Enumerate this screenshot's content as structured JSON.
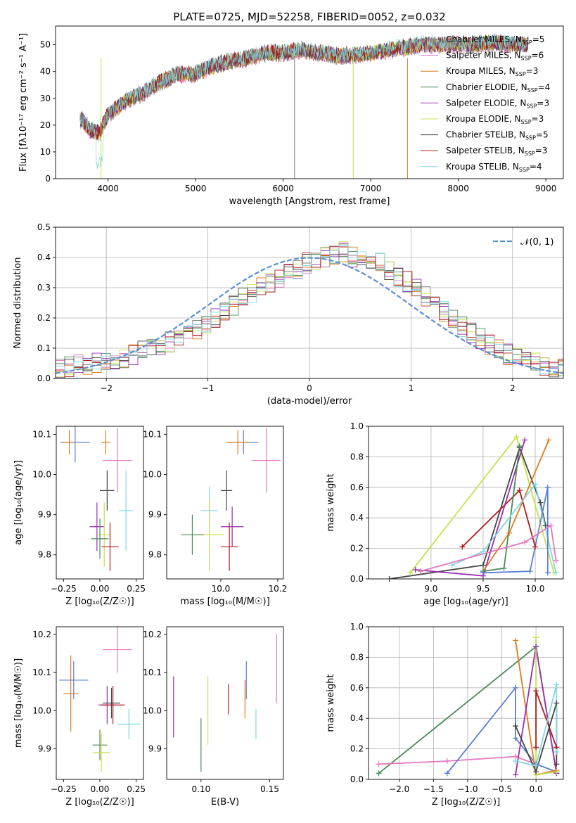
{
  "figure": {
    "title": "PLATE=0725, MJD=52258, FIBERID=0052, z=0.032"
  },
  "colors": {
    "Chabrier MILES": "#7f7f7f",
    "Salpeter MILES": "#e377c2",
    "Kroupa MILES": "#e07b20",
    "Chabrier ELODIE": "#4a8a5a",
    "Salpeter ELODIE": "#9b2cb0",
    "Kroupa ELODIE": "#c8e04a",
    "Chabrier STELIB": "#444444",
    "Salpeter STELIB": "#b01c1c",
    "Kroupa STELIB": "#7fd8e0",
    "scatter_blue": "#5b7fd6",
    "normal_curve": "#5b8fd6"
  },
  "chart_data": [
    {
      "id": "spectrum",
      "type": "line",
      "title": "PLATE=0725, MJD=52258, FIBERID=0052, z=0.032",
      "xlabel": "wavelength [Angstrom, rest frame]",
      "ylabel": "Flux [fλ10⁻¹⁷ erg cm⁻² s⁻¹ A⁻¹]",
      "xlim": [
        3400,
        9200
      ],
      "ylim": [
        0,
        57
      ],
      "xticks": [
        4000,
        5000,
        6000,
        7000,
        8000,
        9000
      ],
      "yticks": [
        0,
        10,
        20,
        30,
        40,
        50
      ],
      "grid": false,
      "legend_position": "top-right",
      "continuum_x": [
        3700,
        3800,
        3900,
        4000,
        4200,
        4400,
        4600,
        4800,
        5000,
        5200,
        5400,
        5600,
        5800,
        6000,
        6200,
        6400,
        6600,
        6800,
        7000,
        7200,
        7400,
        7600,
        7800,
        8000,
        8200,
        8400,
        8600,
        8800
      ],
      "continuum_y": [
        22,
        18,
        17,
        24,
        29,
        32,
        36,
        39,
        39,
        42,
        44,
        45,
        47,
        47,
        48,
        47,
        46,
        46,
        47,
        48,
        49,
        50,
        50,
        50,
        50,
        51,
        50,
        50
      ],
      "series": [
        {
          "name": "Chabrier MILES, N_SSP=5",
          "label": "Chabrier MILES, N",
          "sub": "SSP",
          "suffix": "=5"
        },
        {
          "name": "Salpeter MILES, N_SSP=6",
          "label": "Salpeter MILES, N",
          "sub": "SSP",
          "suffix": "=6"
        },
        {
          "name": "Kroupa MILES, N_SSP=3",
          "label": "Kroupa MILES, N",
          "sub": "SSP",
          "suffix": "=3"
        },
        {
          "name": "Chabrier ELODIE, N_SSP=4",
          "label": "Chabrier ELODIE, N",
          "sub": "SSP",
          "suffix": "=4"
        },
        {
          "name": "Salpeter ELODIE, N_SSP=3",
          "label": "Salpeter ELODIE, N",
          "sub": "SSP",
          "suffix": "=3"
        },
        {
          "name": "Kroupa ELODIE, N_SSP=3",
          "label": "Kroupa ELODIE, N",
          "sub": "SSP",
          "suffix": "=3"
        },
        {
          "name": "Chabrier STELIB, N_SSP=5",
          "label": "Chabrier STELIB, N",
          "sub": "SSP",
          "suffix": "=5"
        },
        {
          "name": "Salpeter STELIB, N_SSP=3",
          "label": "Salpeter STELIB, N",
          "sub": "SSP",
          "suffix": "=3"
        },
        {
          "name": "Kroupa STELIB, N_SSP=4",
          "label": "Kroupa STELIB, N",
          "sub": "SSP",
          "suffix": "=4"
        }
      ]
    },
    {
      "id": "residuals",
      "type": "area",
      "xlabel": "(data-model)/error",
      "ylabel": "Normed distribution",
      "xlim": [
        -2.5,
        2.5
      ],
      "ylim": [
        0,
        0.5
      ],
      "xticks": [
        -2,
        -1,
        0,
        1,
        2
      ],
      "xtick_labels": [
        "−2",
        "−1",
        "0",
        "1",
        "2"
      ],
      "yticks": [
        0,
        0.1,
        0.2,
        0.3,
        0.4,
        0.5
      ],
      "ytick_labels": [
        "0.0",
        "0.1",
        "0.2",
        "0.3",
        "0.4",
        "0.5"
      ],
      "grid": true,
      "legend_position": "top-right",
      "legend_label": "𝒩(0, 1)",
      "bin_width": 0.1,
      "bins_start": -2.5,
      "histogram_envelope": [
        0.03,
        0.04,
        0.05,
        0.04,
        0.05,
        0.06,
        0.06,
        0.07,
        0.08,
        0.09,
        0.1,
        0.11,
        0.12,
        0.13,
        0.15,
        0.16,
        0.18,
        0.2,
        0.22,
        0.24,
        0.27,
        0.28,
        0.3,
        0.32,
        0.33,
        0.35,
        0.36,
        0.38,
        0.38,
        0.4,
        0.41,
        0.42,
        0.4,
        0.39,
        0.38,
        0.38,
        0.36,
        0.33,
        0.32,
        0.3,
        0.27,
        0.25,
        0.22,
        0.2,
        0.17,
        0.15,
        0.13,
        0.11,
        0.1,
        0.08,
        0.07,
        0.06,
        0.05,
        0.04,
        0.04,
        0.03
      ]
    },
    {
      "id": "z-age",
      "type": "scatter",
      "xlabel": "Z [log₁₀(Z/Z☉)]",
      "ylabel": "age  [log₁₀(age/yr)]",
      "xlim": [
        -0.3,
        0.3
      ],
      "ylim": [
        9.74,
        10.12
      ],
      "xticks": [
        -0.25,
        0.0,
        0.25
      ],
      "xtick_labels": [
        "−0.25",
        "0.00",
        "0.25"
      ],
      "yticks": [
        9.8,
        9.9,
        10.0,
        10.1
      ],
      "ytick_labels": [
        "9.8",
        "9.9",
        "10.0",
        "10.1"
      ],
      "grid": false,
      "points": [
        {
          "c": "scatter_blue",
          "x": -0.17,
          "y": 10.08,
          "xe": 0.1,
          "ye": 0.05
        },
        {
          "c": "Kroupa MILES",
          "x": -0.21,
          "y": 10.08,
          "xe": 0.04,
          "ye": 0.03
        },
        {
          "c": "Salpeter MILES",
          "x": 0.12,
          "y": 10.035,
          "xe": 0.1,
          "ye": 0.08
        },
        {
          "c": "Kroupa MILES",
          "x": 0.04,
          "y": 10.08,
          "xe": 0.03,
          "ye": 0.03
        },
        {
          "c": "Chabrier STELIB",
          "x": 0.05,
          "y": 9.96,
          "xe": 0.05,
          "ye": 0.05
        },
        {
          "c": "Kroupa STELIB",
          "x": 0.18,
          "y": 9.91,
          "xe": 0.05,
          "ye": 0.1
        },
        {
          "c": "Salpeter ELODIE",
          "x": -0.02,
          "y": 9.87,
          "xe": 0.05,
          "ye": 0.06
        },
        {
          "c": "Kroupa ELODIE",
          "x": 0.03,
          "y": 9.85,
          "xe": 0.04,
          "ye": 0.08
        },
        {
          "c": "Chabrier ELODIE",
          "x": 0.0,
          "y": 9.84,
          "xe": 0.06,
          "ye": 0.05
        },
        {
          "c": "Salpeter STELIB",
          "x": 0.07,
          "y": 9.82,
          "xe": 0.06,
          "ye": 0.06
        }
      ]
    },
    {
      "id": "mass-age",
      "type": "scatter",
      "xlabel": "mass [log₁₀(M/M☉)]",
      "ylabel": "",
      "xlim": [
        9.81,
        10.22
      ],
      "ylim": [
        9.74,
        10.12
      ],
      "xticks": [
        10.0,
        10.2
      ],
      "xtick_labels": [
        "10.0",
        "10.2"
      ],
      "yticks": [
        9.8,
        9.9,
        10.0,
        10.1
      ],
      "ytick_labels": [
        "9.8",
        "9.9",
        "10.0",
        "10.1"
      ],
      "grid": false,
      "points": [
        {
          "c": "scatter_blue",
          "x": 10.08,
          "y": 10.08,
          "xe": 0.05,
          "ye": 0.03
        },
        {
          "c": "Kroupa MILES",
          "x": 10.06,
          "y": 10.08,
          "xe": 0.04,
          "ye": 0.03
        },
        {
          "c": "Salpeter MILES",
          "x": 10.16,
          "y": 10.035,
          "xe": 0.05,
          "ye": 0.08
        },
        {
          "c": "Chabrier STELIB",
          "x": 10.02,
          "y": 9.96,
          "xe": 0.02,
          "ye": 0.05
        },
        {
          "c": "Kroupa STELIB",
          "x": 9.96,
          "y": 9.91,
          "xe": 0.03,
          "ye": 0.06
        },
        {
          "c": "Salpeter ELODIE",
          "x": 10.04,
          "y": 9.87,
          "xe": 0.04,
          "ye": 0.05
        },
        {
          "c": "Kroupa ELODIE",
          "x": 9.96,
          "y": 9.85,
          "xe": 0.05,
          "ye": 0.09
        },
        {
          "c": "Chabrier ELODIE",
          "x": 9.9,
          "y": 9.85,
          "xe": 0.04,
          "ye": 0.05
        },
        {
          "c": "Salpeter STELIB",
          "x": 10.03,
          "y": 9.82,
          "xe": 0.03,
          "ye": 0.06
        }
      ]
    },
    {
      "id": "age-weight",
      "type": "line",
      "xlabel": "age  [log₁₀(age/yr)]",
      "ylabel": "mass weight",
      "xlim": [
        8.4,
        10.27
      ],
      "ylim": [
        0,
        1
      ],
      "xticks": [
        9.0,
        9.5,
        10.0
      ],
      "xtick_labels": [
        "9.0",
        "9.5",
        "10.0"
      ],
      "yticks": [
        0,
        0.2,
        0.4,
        0.6,
        0.8,
        1.0
      ],
      "ytick_labels": [
        "0.0",
        "0.2",
        "0.4",
        "0.6",
        "0.8",
        "1.0"
      ],
      "grid": true,
      "series": [
        {
          "c": "Kroupa ELODIE",
          "x": [
            8.8,
            9.82,
            10.18
          ],
          "y": [
            0.04,
            0.93,
            0.04
          ]
        },
        {
          "c": "Chabrier STELIB",
          "x": [
            8.6,
            9.5,
            9.85,
            10.05,
            10.1
          ],
          "y": [
            0.0,
            0.09,
            0.86,
            0.5,
            0.35
          ]
        },
        {
          "c": "Salpeter STELIB",
          "x": [
            9.3,
            9.85,
            10.0
          ],
          "y": [
            0.21,
            0.58,
            0.21
          ]
        },
        {
          "c": "Salpeter ELODIE",
          "x": [
            8.85,
            9.5,
            9.9
          ],
          "y": [
            0.06,
            0.02,
            0.91
          ]
        },
        {
          "c": "Kroupa MILES",
          "x": [
            9.5,
            9.75,
            10.13
          ],
          "y": [
            0.05,
            0.3,
            0.91
          ]
        },
        {
          "c": "Chabrier ELODIE",
          "x": [
            9.5,
            9.7,
            9.85
          ],
          "y": [
            0.05,
            0.07,
            0.87
          ]
        },
        {
          "c": "Kroupa STELIB",
          "x": [
            9.2,
            9.5,
            10.0,
            10.2
          ],
          "y": [
            0.09,
            0.18,
            0.62,
            0.04
          ]
        },
        {
          "c": "scatter_blue",
          "x": [
            9.5,
            9.95,
            10.12,
            10.12
          ],
          "y": [
            0.04,
            0.05,
            0.6,
            0.04
          ]
        },
        {
          "c": "Salpeter MILES",
          "x": [
            8.9,
            9.9,
            10.15,
            10.2
          ],
          "y": [
            0.05,
            0.24,
            0.35,
            0.12
          ]
        }
      ]
    },
    {
      "id": "z-mass",
      "type": "scatter",
      "xlabel": "Z [log₁₀(Z/Z☉)]",
      "ylabel": "mass [log₁₀(M/M☉)]",
      "xlim": [
        -0.3,
        0.3
      ],
      "ylim": [
        9.82,
        10.22
      ],
      "xticks": [
        -0.25,
        0.0,
        0.25
      ],
      "xtick_labels": [
        "−0.25",
        "0.00",
        "0.25"
      ],
      "yticks": [
        9.9,
        10.0,
        10.1,
        10.2
      ],
      "ytick_labels": [
        "9.9",
        "10.0",
        "10.1",
        "10.2"
      ],
      "grid": false,
      "points": [
        {
          "c": "Salpeter MILES",
          "x": 0.12,
          "y": 10.16,
          "xe": 0.1,
          "ye": 0.06
        },
        {
          "c": "scatter_blue",
          "x": -0.18,
          "y": 10.08,
          "xe": 0.1,
          "ye": 0.05
        },
        {
          "c": "Kroupa MILES",
          "x": -0.2,
          "y": 10.045,
          "xe": 0.05,
          "ye": 0.1
        },
        {
          "c": "Chabrier STELIB",
          "x": 0.08,
          "y": 10.02,
          "xe": 0.06,
          "ye": 0.04
        },
        {
          "c": "Salpeter ELODIE",
          "x": 0.05,
          "y": 10.015,
          "xe": 0.06,
          "ye": 0.05
        },
        {
          "c": "Salpeter STELIB",
          "x": 0.09,
          "y": 10.015,
          "xe": 0.08,
          "ye": 0.05
        },
        {
          "c": "Kroupa STELIB",
          "x": 0.2,
          "y": 9.965,
          "xe": 0.08,
          "ye": 0.04
        },
        {
          "c": "Chabrier ELODIE",
          "x": 0.0,
          "y": 9.91,
          "xe": 0.05,
          "ye": 0.04
        },
        {
          "c": "Kroupa ELODIE",
          "x": 0.01,
          "y": 9.89,
          "xe": 0.06,
          "ye": 0.05
        }
      ]
    },
    {
      "id": "ebv-mass",
      "type": "scatter",
      "xlabel": "E(B-V)",
      "ylabel": "",
      "xlim": [
        0.075,
        0.16
      ],
      "ylim": [
        9.82,
        10.22
      ],
      "xticks": [
        0.1,
        0.15
      ],
      "xtick_labels": [
        "0.10",
        "0.15"
      ],
      "yticks": [
        9.9,
        10.0,
        10.1,
        10.2
      ],
      "ytick_labels": [
        "9.9",
        "10.0",
        "10.1",
        "10.2"
      ],
      "grid": false,
      "points": [
        {
          "c": "Salpeter MILES",
          "x": 0.155,
          "y": 10.11,
          "xe": 0,
          "ye": 0.09
        },
        {
          "c": "scatter_blue",
          "x": 0.133,
          "y": 10.08,
          "xe": 0,
          "ye": 0.05
        },
        {
          "c": "Kroupa MILES",
          "x": 0.132,
          "y": 10.03,
          "xe": 0,
          "ye": 0.05
        },
        {
          "c": "Kroupa ELODIE",
          "x": 0.105,
          "y": 10.0,
          "xe": 0,
          "ye": 0.09
        },
        {
          "c": "Salpeter ELODIE",
          "x": 0.08,
          "y": 10.01,
          "xe": 0,
          "ye": 0.08
        },
        {
          "c": "Salpeter STELIB",
          "x": 0.12,
          "y": 10.03,
          "xe": 0,
          "ye": 0.04
        },
        {
          "c": "Kroupa STELIB",
          "x": 0.14,
          "y": 9.965,
          "xe": 0,
          "ye": 0.04
        },
        {
          "c": "Chabrier ELODIE",
          "x": 0.1,
          "y": 9.91,
          "xe": 0,
          "ye": 0.07
        }
      ]
    },
    {
      "id": "z-weight",
      "type": "line",
      "xlabel": "Z [log₁₀(Z/Z☉)]",
      "ylabel": "mass weight",
      "xlim": [
        -2.45,
        0.4
      ],
      "ylim": [
        0,
        1
      ],
      "xticks": [
        -2.0,
        -1.5,
        -1.0,
        -0.5,
        0.0
      ],
      "xtick_labels": [
        "−2.0",
        "−1.5",
        "−1.0",
        "−0.5",
        "0.0"
      ],
      "yticks": [
        0,
        0.2,
        0.4,
        0.6,
        0.8,
        1.0
      ],
      "ytick_labels": [
        "0.0",
        "0.2",
        "0.4",
        "0.6",
        "0.8",
        "1.0"
      ],
      "grid": true,
      "series": [
        {
          "c": "Chabrier ELODIE",
          "x": [
            -2.3,
            0.0,
            0.3
          ],
          "y": [
            0.04,
            0.87,
            0.04
          ]
        },
        {
          "c": "Salpeter MILES",
          "x": [
            -2.3,
            -1.3,
            -0.3,
            0.3
          ],
          "y": [
            0.1,
            0.12,
            0.15,
            0.05
          ]
        },
        {
          "c": "scatter_blue",
          "x": [
            -1.3,
            -0.3,
            -0.3,
            0.0,
            0.3
          ],
          "y": [
            0.04,
            0.6,
            0.27,
            0.1,
            0.05
          ]
        },
        {
          "c": "Kroupa MILES",
          "x": [
            -0.3,
            0.0,
            0.3
          ],
          "y": [
            0.91,
            0.03,
            0.06
          ]
        },
        {
          "c": "Salpeter ELODIE",
          "x": [
            -0.3,
            0.0,
            0.3
          ],
          "y": [
            0.03,
            0.87,
            0.04
          ]
        },
        {
          "c": "Kroupa ELODIE",
          "x": [
            0.0,
            0.0,
            0.3
          ],
          "y": [
            0.93,
            0.03,
            0.05
          ]
        },
        {
          "c": "Salpeter STELIB",
          "x": [
            0.0,
            0.0,
            0.3
          ],
          "y": [
            0.21,
            0.58,
            0.21
          ]
        },
        {
          "c": "Chabrier STELIB",
          "x": [
            -0.3,
            0.0,
            0.3,
            0.3
          ],
          "y": [
            0.35,
            0.05,
            0.5,
            0.1
          ]
        },
        {
          "c": "Kroupa STELIB",
          "x": [
            -0.3,
            0.0,
            0.3,
            0.3
          ],
          "y": [
            0.12,
            0.09,
            0.62,
            0.18
          ]
        }
      ]
    }
  ]
}
